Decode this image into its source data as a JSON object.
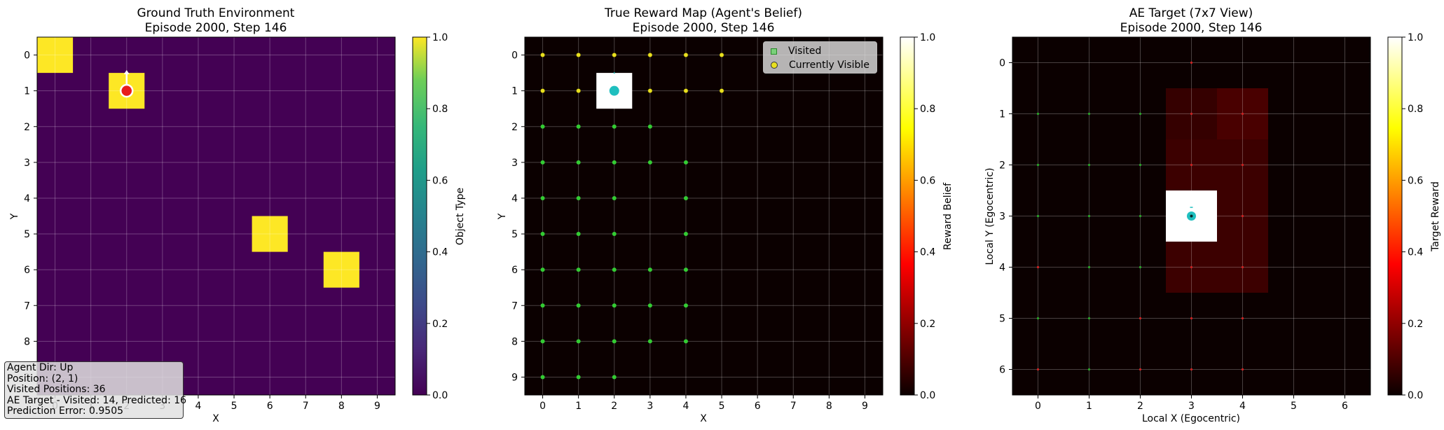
{
  "panels": [
    {
      "title": "Ground Truth Environment",
      "subtitle": "Episode 2000, Step 146",
      "xlabel": "X",
      "ylabel": "Y",
      "cbar_label": "Object Type",
      "cbar_ticks": [
        "0.0",
        "0.2",
        "0.4",
        "0.6",
        "0.8",
        "1.0"
      ],
      "x_ticks": [
        "0",
        "1",
        "2",
        "3",
        "4",
        "5",
        "6",
        "7",
        "8",
        "9"
      ],
      "y_ticks": [
        "0",
        "1",
        "2",
        "3",
        "4",
        "5",
        "6",
        "7",
        "8",
        "9"
      ]
    },
    {
      "title": "True Reward Map (Agent's Belief)",
      "subtitle": "Episode 2000, Step 146",
      "xlabel": "X",
      "ylabel": "Y",
      "cbar_label": "Reward Belief",
      "cbar_ticks": [
        "0.0",
        "0.2",
        "0.4",
        "0.6",
        "0.8",
        "1.0"
      ],
      "x_ticks": [
        "0",
        "1",
        "2",
        "3",
        "4",
        "5",
        "6",
        "7",
        "8",
        "9"
      ],
      "y_ticks": [
        "0",
        "1",
        "2",
        "3",
        "4",
        "5",
        "6",
        "7",
        "8",
        "9"
      ]
    },
    {
      "title": "AE Target (7x7 View)",
      "subtitle": "Episode 2000, Step 146",
      "xlabel": "Local X (Egocentric)",
      "ylabel": "Local Y (Egocentric)",
      "cbar_label": "Target Reward",
      "cbar_ticks": [
        "0.0",
        "0.2",
        "0.4",
        "0.6",
        "0.8",
        "1.0"
      ],
      "x_ticks": [
        "0",
        "1",
        "2",
        "3",
        "4",
        "5",
        "6"
      ],
      "y_ticks": [
        "0",
        "1",
        "2",
        "3",
        "4",
        "5",
        "6"
      ]
    }
  ],
  "info_box": {
    "line1": "Agent Dir: Up",
    "line2": "Position: (2, 1)",
    "line3": "Visited Positions: 36",
    "line4": "AE Target - Visited: 14, Predicted: 16",
    "line5": "Prediction Error: 0.9505"
  },
  "legend": {
    "visited": "Visited",
    "visible": "Currently Visible"
  },
  "chart_data": [
    {
      "type": "heatmap",
      "title": "Ground Truth Environment",
      "subtitle": "Episode 2000, Step 146",
      "xlabel": "X",
      "ylabel": "Y",
      "grid_size": [
        10,
        10
      ],
      "colormap": "viridis",
      "clim": [
        0,
        1
      ],
      "background_value": 0,
      "object_cells": [
        [
          0,
          0
        ],
        [
          2,
          1
        ],
        [
          6,
          5
        ],
        [
          8,
          6
        ]
      ],
      "object_value": 1,
      "agent_position": [
        2,
        1
      ],
      "agent_direction": "Up",
      "colorbar_label": "Object Type",
      "grid": true
    },
    {
      "type": "heatmap",
      "title": "True Reward Map (Agent's Belief)",
      "subtitle": "Episode 2000, Step 146",
      "xlabel": "X",
      "ylabel": "Y",
      "grid_size": [
        10,
        10
      ],
      "colormap": "hot",
      "clim": [
        0,
        1
      ],
      "reward_cells": [
        [
          2,
          1
        ]
      ],
      "reward_value": 1,
      "agent_position": [
        2,
        1
      ],
      "visible_cells": [
        [
          0,
          0
        ],
        [
          1,
          0
        ],
        [
          2,
          0
        ],
        [
          3,
          0
        ],
        [
          4,
          0
        ],
        [
          5,
          0
        ],
        [
          0,
          1
        ],
        [
          1,
          1
        ],
        [
          3,
          1
        ],
        [
          4,
          1
        ],
        [
          5,
          1
        ]
      ],
      "visited_cells": [
        [
          0,
          2
        ],
        [
          1,
          2
        ],
        [
          2,
          2
        ],
        [
          3,
          2
        ],
        [
          0,
          3
        ],
        [
          1,
          3
        ],
        [
          2,
          3
        ],
        [
          3,
          3
        ],
        [
          4,
          3
        ],
        [
          0,
          4
        ],
        [
          1,
          4
        ],
        [
          2,
          4
        ],
        [
          4,
          4
        ],
        [
          0,
          5
        ],
        [
          1,
          5
        ],
        [
          2,
          5
        ],
        [
          4,
          5
        ],
        [
          0,
          6
        ],
        [
          1,
          6
        ],
        [
          2,
          6
        ],
        [
          3,
          6
        ],
        [
          4,
          6
        ],
        [
          0,
          7
        ],
        [
          1,
          7
        ],
        [
          2,
          7
        ],
        [
          3,
          7
        ],
        [
          4,
          7
        ],
        [
          0,
          8
        ],
        [
          1,
          8
        ],
        [
          2,
          8
        ],
        [
          3,
          8
        ],
        [
          4,
          8
        ],
        [
          0,
          9
        ],
        [
          1,
          9
        ],
        [
          2,
          9
        ]
      ],
      "colorbar_label": "Reward Belief",
      "legend_position": "top-right",
      "grid": true
    },
    {
      "type": "heatmap",
      "title": "AE Target (7x7 View)",
      "subtitle": "Episode 2000, Step 146",
      "xlabel": "Local X (Egocentric)",
      "ylabel": "Local Y (Egocentric)",
      "grid_size": [
        7,
        7
      ],
      "colormap": "hot",
      "clim": [
        0,
        1
      ],
      "cells": [
        {
          "x": 3,
          "y": 1,
          "value": 0.06
        },
        {
          "x": 4,
          "y": 1,
          "value": 0.09
        },
        {
          "x": 3,
          "y": 2,
          "value": 0.07
        },
        {
          "x": 4,
          "y": 2,
          "value": 0.07
        },
        {
          "x": 4,
          "y": 3,
          "value": 0.07
        },
        {
          "x": 3,
          "y": 4,
          "value": 0.07
        },
        {
          "x": 4,
          "y": 4,
          "value": 0.07
        },
        {
          "x": 3,
          "y": 3,
          "value": 1.0
        }
      ],
      "agent_position": [
        3,
        3
      ],
      "visited_markers": [
        [
          0,
          1
        ],
        [
          1,
          1
        ],
        [
          2,
          1
        ],
        [
          0,
          2
        ],
        [
          1,
          2
        ],
        [
          2,
          2
        ],
        [
          0,
          3
        ],
        [
          1,
          3
        ],
        [
          2,
          3
        ],
        [
          1,
          4
        ],
        [
          2,
          4
        ],
        [
          0,
          5
        ],
        [
          1,
          5
        ],
        [
          1,
          6
        ]
      ],
      "predicted_markers": [
        [
          3,
          1
        ],
        [
          4,
          1
        ],
        [
          3,
          2
        ],
        [
          4,
          2
        ],
        [
          4,
          3
        ],
        [
          0,
          4
        ],
        [
          3,
          4
        ],
        [
          4,
          4
        ],
        [
          2,
          5
        ],
        [
          3,
          5
        ],
        [
          4,
          5
        ],
        [
          0,
          6
        ],
        [
          2,
          6
        ],
        [
          3,
          6
        ],
        [
          4,
          6
        ],
        [
          3,
          0
        ]
      ],
      "colorbar_label": "Target Reward",
      "grid": true
    }
  ]
}
